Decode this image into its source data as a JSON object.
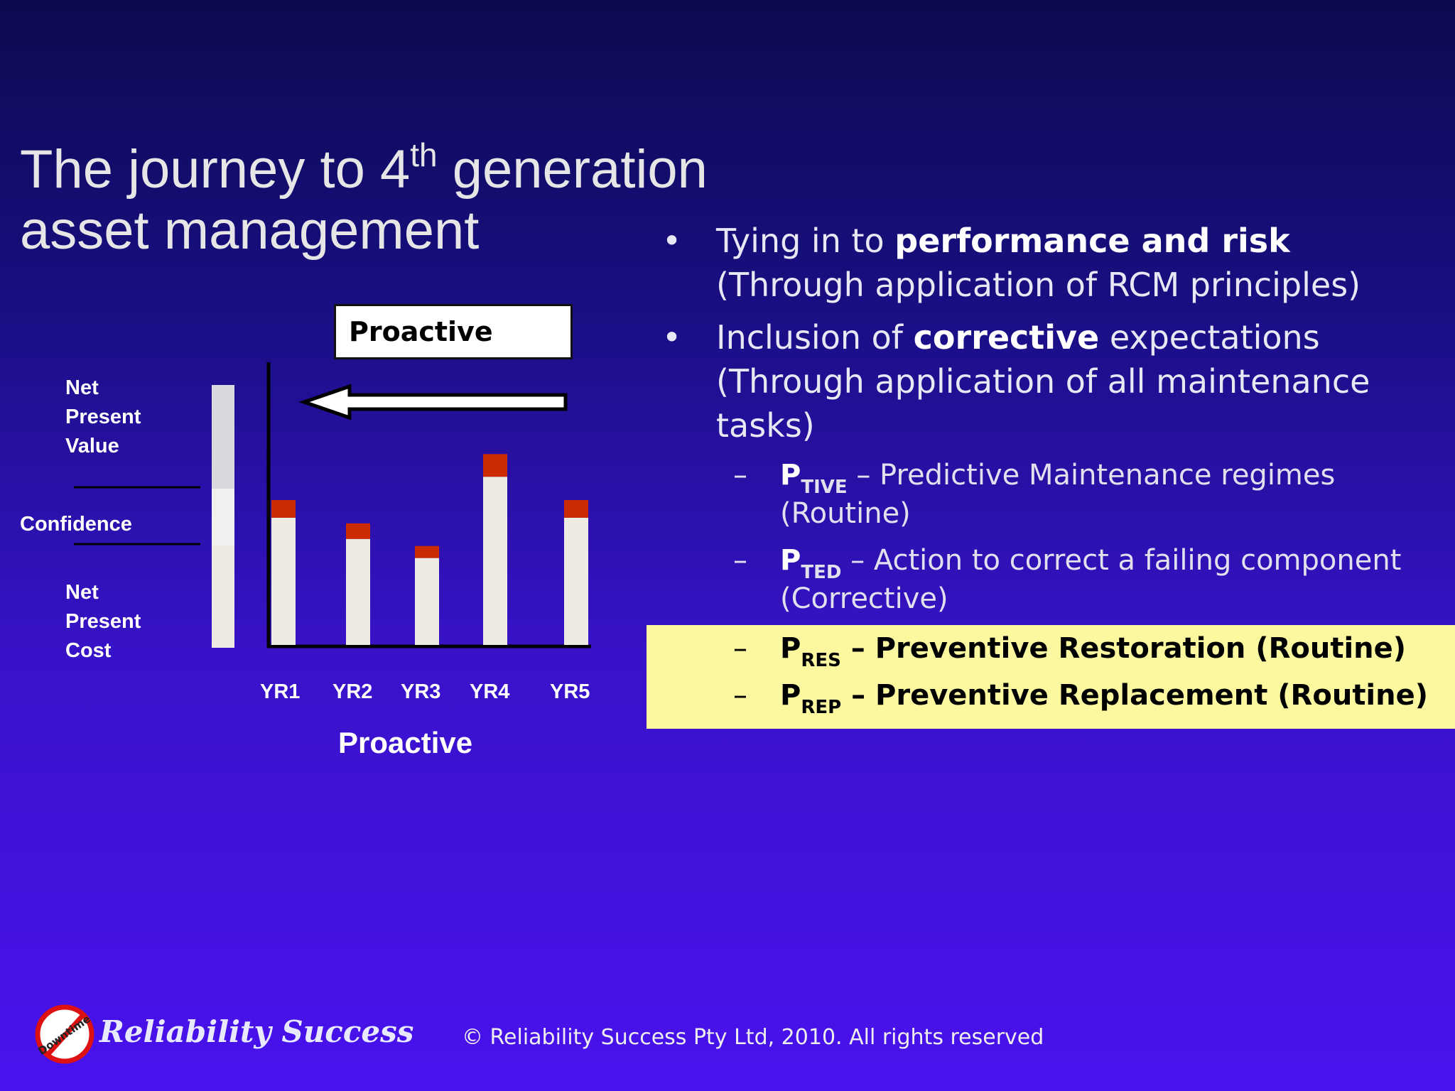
{
  "slide": {
    "title_pre": "The journey to 4",
    "title_sup": "th",
    "title_post": " generation",
    "title_line2": "asset management",
    "proactive_box": "Proactive",
    "chart_caption": "Proactive",
    "footer": "© Reliability Success Pty  Ltd, 2010. All rights reserved"
  },
  "legend": {
    "npv": [
      "Net",
      "Present",
      "Value"
    ],
    "confidence": "Confidence",
    "npc": [
      "Net",
      "Present",
      "Cost"
    ]
  },
  "bullets": [
    {
      "a": "Tying in to ",
      "b": "performance and risk",
      "c": " (Through application of RCM principles)"
    },
    {
      "a": "Inclusion of ",
      "b": "corrective",
      "c": " expectations (Through application of all maintenance tasks)"
    }
  ],
  "subitems": [
    {
      "p": "P",
      "sub": "TIVE",
      "text": " – Predictive Maintenance regimes (Routine)"
    },
    {
      "p": "P",
      "sub": "TED",
      "text": " – Action to correct a failing component (Corrective)"
    }
  ],
  "highlighted": [
    {
      "p": "P",
      "sub": "RES",
      "text": " – Preventive Restoration (Routine)"
    },
    {
      "p": "P",
      "sub": "REP",
      "text": " – Preventive Replacement (Routine)"
    }
  ],
  "symbols": {
    "bullet": "•",
    "dash": "–"
  },
  "logo": {
    "text": "Reliability Success",
    "badge": "Downtime"
  },
  "colors": {
    "bar_base": "#eeebe4",
    "bar_top": "#cc2a00",
    "highlight": "#fbf8a0"
  },
  "chart_data": {
    "type": "bar",
    "categories": [
      "YR1",
      "YR2",
      "YR3",
      "YR4",
      "YR5"
    ],
    "series": [
      {
        "name": "Net Present Cost",
        "values": [
          180,
          150,
          123,
          238,
          180
        ]
      },
      {
        "name": "Net Present Value",
        "values": [
          25,
          22,
          17,
          32,
          25
        ]
      }
    ],
    "ylim": [
      0,
      400
    ],
    "stacked": true,
    "xlabel": "Proactive",
    "ylabel": ""
  }
}
